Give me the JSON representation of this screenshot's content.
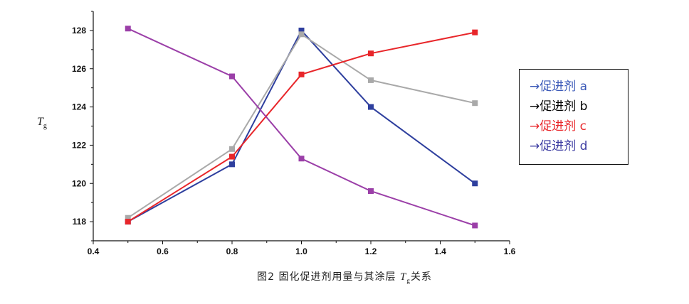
{
  "chart_data": {
    "type": "line",
    "x": [
      0.5,
      0.8,
      1.0,
      1.2,
      1.5
    ],
    "xlim": [
      0.4,
      1.6
    ],
    "ylim": [
      117,
      129
    ],
    "xticks": [
      "0.4",
      "0.6",
      "0.8",
      "1.0",
      "1.2",
      "1.4",
      "1.6"
    ],
    "yticks": [
      "118",
      "120",
      "122",
      "124",
      "126",
      "128"
    ],
    "ylabel_main": "T",
    "ylabel_sub": "g",
    "grid": false,
    "legend_position": "right",
    "series": [
      {
        "name": "→促进剂 a",
        "color": "#2e3f9e",
        "values": [
          118.0,
          121.0,
          128.0,
          124.0,
          120.0
        ]
      },
      {
        "name": "→促进剂 b",
        "color": "#a9a9a9",
        "values": [
          118.2,
          121.8,
          127.8,
          125.4,
          124.2
        ]
      },
      {
        "name": "→促进剂 c",
        "color": "#e8262a",
        "values": [
          118.0,
          121.4,
          125.7,
          126.8,
          127.9
        ]
      },
      {
        "name": "→促进剂 d",
        "color": "#9b3fa8",
        "values": [
          128.1,
          125.6,
          121.3,
          119.6,
          117.8
        ]
      }
    ]
  },
  "legend": {
    "items": [
      {
        "label": "→促进剂 a",
        "color": "#3a58b7"
      },
      {
        "label": "→促进剂 b",
        "color": "#000000"
      },
      {
        "label": "→促进剂 c",
        "color": "#e8262a"
      },
      {
        "label": "→促进剂 d",
        "color": "#3a3aa0"
      }
    ]
  },
  "caption": {
    "prefix": "图2 固化促进剂用量与其涂层 ",
    "t": "T",
    "sub": "g",
    "suffix": "关系"
  }
}
